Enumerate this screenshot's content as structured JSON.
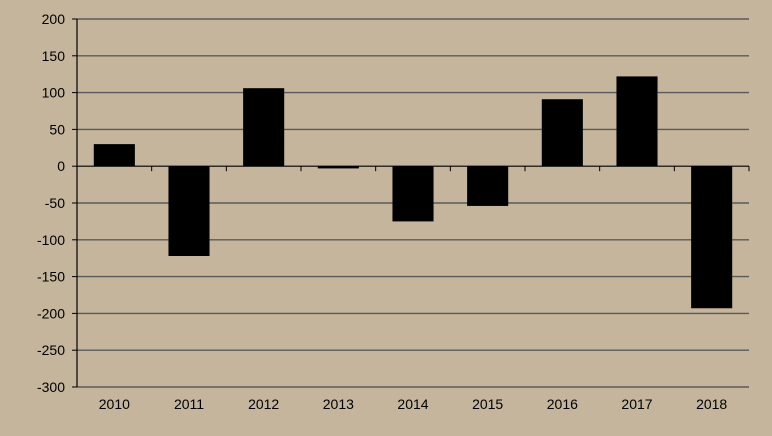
{
  "chart_data": {
    "type": "bar",
    "categories": [
      "2010",
      "2011",
      "2012",
      "2013",
      "2014",
      "2015",
      "2016",
      "2017",
      "2018"
    ],
    "values": [
      30,
      -122,
      106,
      -3,
      -75,
      -54,
      91,
      122,
      -193
    ],
    "title": "",
    "xlabel": "",
    "ylabel": "",
    "ylim": [
      -300,
      200
    ],
    "yticks": [
      "200",
      "150",
      "100",
      "50",
      "0",
      "-50",
      "-100",
      "-150",
      "-200",
      "-250",
      "-300"
    ],
    "grid": true,
    "legend": "none",
    "colors": {
      "background": "#c4b59c",
      "bar": "#000000",
      "gridline": "#5a5a5a",
      "axis": "#000000"
    }
  }
}
